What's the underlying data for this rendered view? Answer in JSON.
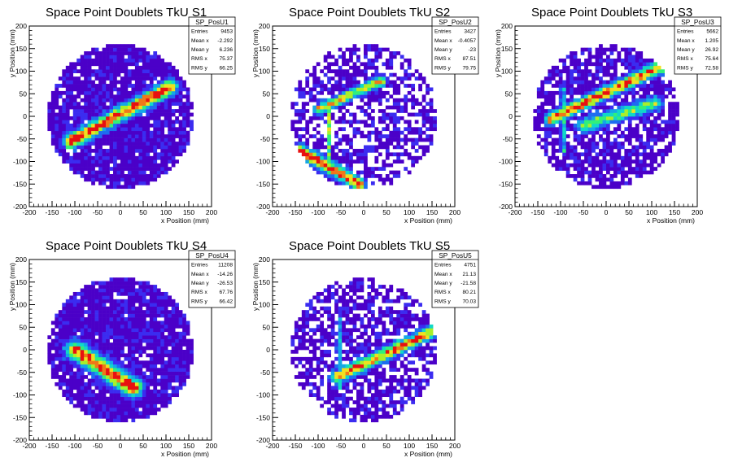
{
  "chart_data": [
    {
      "type": "heatmap",
      "title": "Space Point Doublets TkU S1",
      "xlabel": "x Position (mm)",
      "ylabel": "y Position (mm)",
      "xlim": [
        -200,
        200
      ],
      "ylim": [
        -200,
        200
      ],
      "xticks": [
        "-200",
        "-150",
        "-100",
        "-50",
        "0",
        "50",
        "100",
        "150",
        "200"
      ],
      "yticks": [
        "-200",
        "-150",
        "-100",
        "-50",
        "0",
        "50",
        "100",
        "150",
        "200"
      ],
      "stats": {
        "name": "SP_PosU1",
        "rows": [
          [
            "Entries",
            "9453"
          ],
          [
            "Mean x",
            "-2.292"
          ],
          [
            "Mean y",
            "6.236"
          ],
          [
            "RMS x",
            "75.37"
          ],
          [
            "RMS y",
            "66.25"
          ]
        ]
      },
      "density": {
        "detector_radius_mm": 160,
        "fill_fraction": 0.9,
        "tracks": [
          {
            "from": [
              -110,
              -55
            ],
            "to": [
              110,
              65
            ],
            "width_mm": 14,
            "peak": 1.0
          }
        ],
        "lines": []
      }
    },
    {
      "type": "heatmap",
      "title": "Space Point Doublets TkU S2",
      "xlabel": "x Position (mm)",
      "ylabel": "y Position (mm)",
      "xlim": [
        -200,
        200
      ],
      "ylim": [
        -200,
        200
      ],
      "xticks": [
        "-200",
        "-150",
        "-100",
        "-50",
        "0",
        "50",
        "100",
        "150",
        "200"
      ],
      "yticks": [
        "-200",
        "-150",
        "-100",
        "-50",
        "0",
        "50",
        "100",
        "150",
        "200"
      ],
      "stats": {
        "name": "SP_PosU2",
        "rows": [
          [
            "Entries",
            "3427"
          ],
          [
            "Mean x",
            "-0.4057"
          ],
          [
            "Mean y",
            "-23"
          ],
          [
            "RMS x",
            "87.51"
          ],
          [
            "RMS y",
            "79.75"
          ]
        ]
      },
      "density": {
        "detector_radius_mm": 160,
        "fill_fraction": 0.6,
        "tracks": [
          {
            "from": [
              -100,
              15
            ],
            "to": [
              40,
              80
            ],
            "width_mm": 10,
            "peak": 0.75
          },
          {
            "from": [
              -140,
              -75
            ],
            "to": [
              -10,
              -150
            ],
            "width_mm": 12,
            "peak": 1.0
          }
        ],
        "lines": [
          {
            "x_mm": -75,
            "from_y": -100,
            "to_y": 25,
            "peak": 0.6
          }
        ]
      }
    },
    {
      "type": "heatmap",
      "title": "Space Point Doublets TkU S3",
      "xlabel": "x Position (mm)",
      "ylabel": "y Position (mm)",
      "xlim": [
        -200,
        200
      ],
      "ylim": [
        -200,
        200
      ],
      "xticks": [
        "-200",
        "-150",
        "-100",
        "-50",
        "0",
        "50",
        "100",
        "150",
        "200"
      ],
      "yticks": [
        "-200",
        "-150",
        "-100",
        "-50",
        "0",
        "50",
        "100",
        "150",
        "200"
      ],
      "stats": {
        "name": "SP_PosU3",
        "rows": [
          [
            "Entries",
            "5662"
          ],
          [
            "Mean x",
            "1.205"
          ],
          [
            "Mean y",
            "26.92"
          ],
          [
            "RMS x",
            "75.64"
          ],
          [
            "RMS y",
            "72.58"
          ]
        ]
      },
      "density": {
        "detector_radius_mm": 160,
        "fill_fraction": 0.75,
        "tracks": [
          {
            "from": [
              -120,
              -5
            ],
            "to": [
              120,
              110
            ],
            "width_mm": 12,
            "peak": 0.95
          },
          {
            "from": [
              -50,
              -20
            ],
            "to": [
              110,
              30
            ],
            "width_mm": 14,
            "peak": 0.55
          }
        ],
        "lines": [
          {
            "x_mm": -95,
            "from_y": -80,
            "to_y": 60,
            "peak": 0.6
          }
        ]
      }
    },
    {
      "type": "heatmap",
      "title": "Space Point Doublets TkU S4",
      "xlabel": "x Position (mm)",
      "ylabel": "y Position (mm)",
      "xlim": [
        -200,
        200
      ],
      "ylim": [
        -200,
        200
      ],
      "xticks": [
        "-200",
        "-150",
        "-100",
        "-50",
        "0",
        "50",
        "100",
        "150",
        "200"
      ],
      "yticks": [
        "-200",
        "-150",
        "-100",
        "-50",
        "0",
        "50",
        "100",
        "150",
        "200"
      ],
      "stats": {
        "name": "SP_PosU4",
        "rows": [
          [
            "Entries",
            "11208"
          ],
          [
            "Mean x",
            "-14.26"
          ],
          [
            "Mean y",
            "-26.53"
          ],
          [
            "RMS x",
            "67.76"
          ],
          [
            "RMS y",
            "66.42"
          ]
        ]
      },
      "density": {
        "detector_radius_mm": 160,
        "fill_fraction": 0.92,
        "tracks": [
          {
            "from": [
              -100,
              0
            ],
            "to": [
              30,
              -85
            ],
            "width_mm": 18,
            "peak": 1.0
          }
        ],
        "lines": []
      }
    },
    {
      "type": "heatmap",
      "title": "Space Point Doublets TkU S5",
      "xlabel": "x Position (mm)",
      "ylabel": "y Position (mm)",
      "xlim": [
        -200,
        200
      ],
      "ylim": [
        -200,
        200
      ],
      "xticks": [
        "-200",
        "-150",
        "-100",
        "-50",
        "0",
        "50",
        "100",
        "150",
        "200"
      ],
      "yticks": [
        "-200",
        "-150",
        "-100",
        "-50",
        "0",
        "50",
        "100",
        "150",
        "200"
      ],
      "stats": {
        "name": "SP_PosU5",
        "rows": [
          [
            "Entries",
            "4751"
          ],
          [
            "Mean x",
            "21.13"
          ],
          [
            "Mean y",
            "-21.58"
          ],
          [
            "RMS x",
            "80.21"
          ],
          [
            "RMS y",
            "70.03"
          ]
        ]
      },
      "density": {
        "detector_radius_mm": 160,
        "fill_fraction": 0.65,
        "tracks": [
          {
            "from": [
              -60,
              -60
            ],
            "to": [
              150,
              40
            ],
            "width_mm": 12,
            "peak": 0.9
          }
        ],
        "lines": [
          {
            "x_mm": -55,
            "from_y": -90,
            "to_y": 70,
            "peak": 0.55
          }
        ]
      }
    }
  ],
  "colors": {
    "palette": [
      "#4b00c8",
      "#3b2cf0",
      "#1e6cf0",
      "#14a8e6",
      "#10d8c8",
      "#30f07a",
      "#a8f02a",
      "#f0e020",
      "#f07818",
      "#e81010"
    ]
  }
}
